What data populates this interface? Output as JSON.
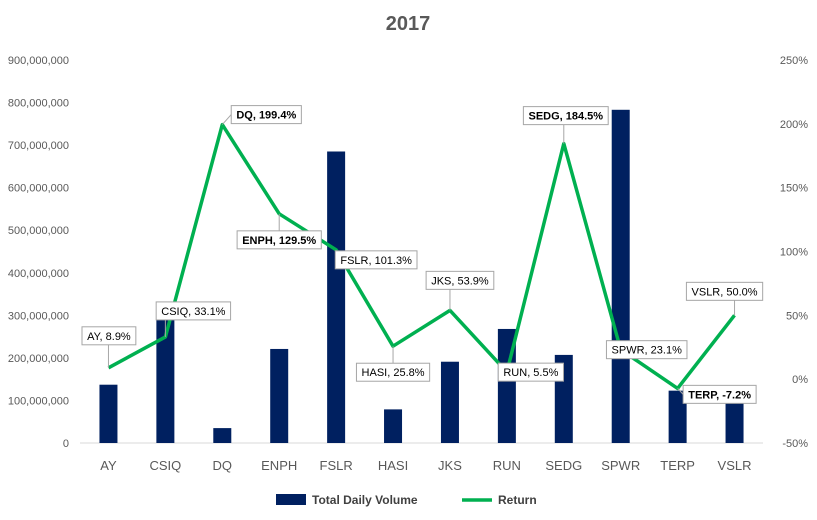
{
  "chart_data": {
    "type": "bar",
    "title": "2017",
    "categories": [
      "AY",
      "CSIQ",
      "DQ",
      "ENPH",
      "FSLR",
      "HASI",
      "JKS",
      "RUN",
      "SEDG",
      "SPWR",
      "TERP",
      "VSLR"
    ],
    "series": [
      {
        "name": "Total Daily Volume",
        "type": "bar",
        "axis": "left",
        "color": "#002060",
        "values": [
          137000000,
          311000000,
          35000000,
          221000000,
          685000000,
          79000000,
          191000000,
          268000000,
          207000000,
          783000000,
          123000000,
          108000000
        ]
      },
      {
        "name": "Return",
        "type": "line",
        "axis": "right",
        "color": "#00B050",
        "values": [
          8.9,
          33.1,
          199.4,
          129.5,
          101.3,
          25.8,
          53.9,
          5.5,
          184.5,
          23.1,
          -7.2,
          50.0
        ]
      }
    ],
    "y_left": {
      "ylim": [
        0,
        900000000
      ],
      "ticks": [
        "0",
        "100,000,000",
        "200,000,000",
        "300,000,000",
        "400,000,000",
        "500,000,000",
        "600,000,000",
        "700,000,000",
        "800,000,000",
        "900,000,000"
      ]
    },
    "y_right": {
      "ylim": [
        -50,
        250
      ],
      "ticks": [
        "-50%",
        "0%",
        "50%",
        "100%",
        "150%",
        "200%",
        "250%"
      ]
    },
    "annotations": [
      {
        "text": "AY, 8.9%",
        "color": "#000000",
        "bold": false
      },
      {
        "text": "CSIQ, 33.1%",
        "color": "#000000",
        "bold": false
      },
      {
        "text": "DQ, 199.4%",
        "color": "#00B050",
        "bold": true
      },
      {
        "text": "ENPH, 129.5%",
        "color": "#00B050",
        "bold": true
      },
      {
        "text": "FSLR, 101.3%",
        "color": "#000000",
        "bold": false
      },
      {
        "text": "HASI, 25.8%",
        "color": "#000000",
        "bold": false
      },
      {
        "text": "JKS, 53.9%",
        "color": "#000000",
        "bold": false
      },
      {
        "text": "RUN, 5.5%",
        "color": "#000000",
        "bold": false
      },
      {
        "text": "SEDG, 184.5%",
        "color": "#00B050",
        "bold": true
      },
      {
        "text": "SPWR, 23.1%",
        "color": "#000000",
        "bold": false
      },
      {
        "text": "TERP, -7.2%",
        "color": "#FF0000",
        "bold": true
      },
      {
        "text": "VSLR, 50.0%",
        "color": "#000000",
        "bold": false
      }
    ],
    "legend": {
      "position": "bottom",
      "items": [
        "Total Daily Volume",
        "Return"
      ]
    },
    "grid": false
  }
}
